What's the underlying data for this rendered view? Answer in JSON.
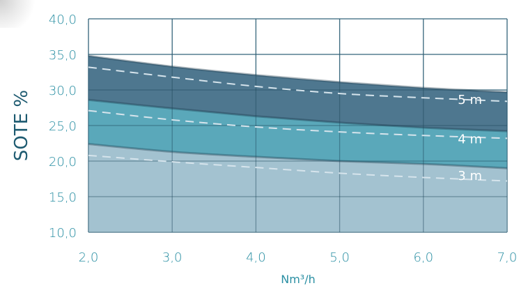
{
  "chart_data": {
    "type": "area",
    "title": "",
    "xlabel": "Nm³/h",
    "ylabel": "SOTE %",
    "xlim": [
      2.0,
      7.0
    ],
    "ylim": [
      10.0,
      40.0
    ],
    "x_ticks": [
      "2,0",
      "3,0",
      "4,0",
      "5,0",
      "6,0",
      "7,0"
    ],
    "y_ticks": [
      "40,0",
      "35,0",
      "30,0",
      "25,0",
      "20,0",
      "15,0",
      "10,0"
    ],
    "grid": true,
    "x": [
      2.0,
      3.0,
      4.0,
      5.0,
      6.0,
      7.0
    ],
    "series": [
      {
        "name": "5 m",
        "upper": [
          34.8,
          33.3,
          32.1,
          31.1,
          30.3,
          29.7
        ],
        "dashed": [
          33.2,
          31.8,
          30.5,
          29.5,
          28.9,
          28.4
        ],
        "color": "#4e778f"
      },
      {
        "name": "4 m",
        "upper": [
          28.6,
          27.4,
          26.3,
          25.4,
          24.7,
          24.2
        ],
        "dashed": [
          27.1,
          25.8,
          24.8,
          24.1,
          23.6,
          23.2
        ],
        "color": "#5aa8ba"
      },
      {
        "name": "3 m",
        "upper": [
          22.4,
          21.3,
          20.6,
          20.0,
          19.6,
          19.0
        ],
        "dashed": [
          20.8,
          19.9,
          19.1,
          18.3,
          17.7,
          17.2
        ],
        "color": "#a3c2d0"
      }
    ],
    "label_colors": {
      "tick": "#2a8fa3",
      "ytitle": "#1d5a70"
    }
  }
}
